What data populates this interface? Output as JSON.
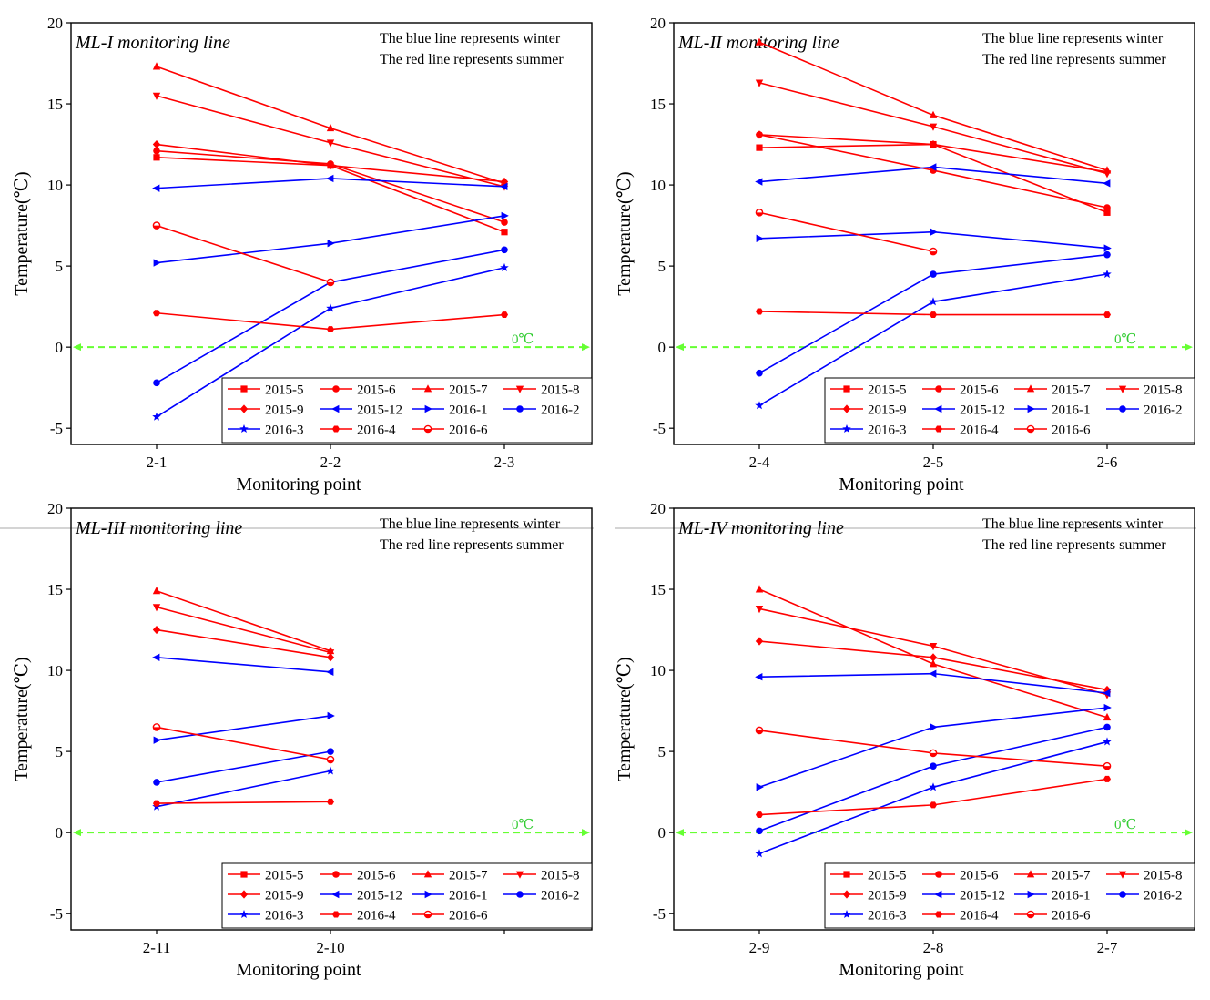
{
  "figure": {
    "x_axis_title": "Monitoring point",
    "y_axis_title": "Temperature(℃)",
    "zero_label": "0℃",
    "note_winter": "The blue line represents winter",
    "note_summer": "The red line represents summer"
  },
  "colors": {
    "summer": "#ff0000",
    "winter": "#0000ff",
    "zero_line": "#66ff33"
  },
  "legend": [
    {
      "name": "2015-5",
      "color": "#ff0000",
      "marker": "square"
    },
    {
      "name": "2015-6",
      "color": "#ff0000",
      "marker": "circle"
    },
    {
      "name": "2015-7",
      "color": "#ff0000",
      "marker": "triangle-up"
    },
    {
      "name": "2015-8",
      "color": "#ff0000",
      "marker": "triangle-down"
    },
    {
      "name": "2015-9",
      "color": "#ff0000",
      "marker": "diamond"
    },
    {
      "name": "2015-12",
      "color": "#0000ff",
      "marker": "triangle-left"
    },
    {
      "name": "2016-1",
      "color": "#0000ff",
      "marker": "triangle-right"
    },
    {
      "name": "2016-2",
      "color": "#0000ff",
      "marker": "circle"
    },
    {
      "name": "2016-3",
      "color": "#0000ff",
      "marker": "star"
    },
    {
      "name": "2016-4",
      "color": "#ff0000",
      "marker": "hexagon"
    },
    {
      "name": "2016-6",
      "color": "#ff0000",
      "marker": "half-circle"
    }
  ],
  "chart_data": [
    {
      "type": "line",
      "title": "ML-I monitoring line",
      "xlabel": "Monitoring point",
      "ylabel": "Temperature(℃)",
      "ylim": [
        -6,
        20
      ],
      "yticks": [
        -5,
        0,
        5,
        10,
        15,
        20
      ],
      "categories": [
        "2-1",
        "2-2",
        "2-3"
      ],
      "series": [
        {
          "name": "2015-5",
          "values": [
            11.7,
            11.2,
            7.1
          ]
        },
        {
          "name": "2015-6",
          "values": [
            12.1,
            11.3,
            7.7
          ]
        },
        {
          "name": "2015-7",
          "values": [
            17.3,
            13.5,
            10.1
          ]
        },
        {
          "name": "2015-8",
          "values": [
            15.5,
            12.6,
            9.9
          ]
        },
        {
          "name": "2015-9",
          "values": [
            12.5,
            11.2,
            10.2
          ]
        },
        {
          "name": "2015-12",
          "values": [
            9.8,
            10.4,
            9.9
          ]
        },
        {
          "name": "2016-1",
          "values": [
            5.2,
            6.4,
            8.1
          ]
        },
        {
          "name": "2016-2",
          "values": [
            -2.2,
            4.0,
            6.0
          ]
        },
        {
          "name": "2016-3",
          "values": [
            -4.3,
            2.4,
            4.9
          ]
        },
        {
          "name": "2016-4",
          "values": [
            2.1,
            1.1,
            2.0
          ]
        },
        {
          "name": "2016-6",
          "values": [
            7.5,
            4.0,
            null
          ]
        }
      ]
    },
    {
      "type": "line",
      "title": "ML-II monitoring line",
      "xlabel": "Monitoring point",
      "ylabel": "Temperature(℃)",
      "ylim": [
        -6,
        20
      ],
      "yticks": [
        -5,
        0,
        5,
        10,
        15,
        20
      ],
      "categories": [
        "2-4",
        "2-5",
        "2-6"
      ],
      "series": [
        {
          "name": "2015-5",
          "values": [
            12.3,
            12.5,
            8.3
          ]
        },
        {
          "name": "2015-6",
          "values": [
            13.1,
            10.9,
            8.6
          ]
        },
        {
          "name": "2015-7",
          "values": [
            18.8,
            14.3,
            10.9
          ]
        },
        {
          "name": "2015-8",
          "values": [
            16.3,
            13.6,
            10.7
          ]
        },
        {
          "name": "2015-9",
          "values": [
            13.1,
            12.5,
            10.8
          ]
        },
        {
          "name": "2015-12",
          "values": [
            10.2,
            11.1,
            10.1
          ]
        },
        {
          "name": "2016-1",
          "values": [
            6.7,
            7.1,
            6.1
          ]
        },
        {
          "name": "2016-2",
          "values": [
            -1.6,
            4.5,
            5.7
          ]
        },
        {
          "name": "2016-3",
          "values": [
            -3.6,
            2.8,
            4.5
          ]
        },
        {
          "name": "2016-4",
          "values": [
            2.2,
            2.0,
            2.0
          ]
        },
        {
          "name": "2016-6",
          "values": [
            8.3,
            5.9,
            null
          ]
        }
      ]
    },
    {
      "type": "line",
      "title": "ML-III monitoring line",
      "xlabel": "Monitoring point",
      "ylabel": "Temperature(℃)",
      "ylim": [
        -6,
        20
      ],
      "yticks": [
        -5,
        0,
        5,
        10,
        15,
        20
      ],
      "categories": [
        "2-11",
        "2-10",
        ""
      ],
      "series": [
        {
          "name": "2015-7",
          "values": [
            14.9,
            11.2,
            null
          ]
        },
        {
          "name": "2015-8",
          "values": [
            13.9,
            11.1,
            null
          ]
        },
        {
          "name": "2015-9",
          "values": [
            12.5,
            10.8,
            null
          ]
        },
        {
          "name": "2015-12",
          "values": [
            10.8,
            9.9,
            null
          ]
        },
        {
          "name": "2016-1",
          "values": [
            5.7,
            7.2,
            null
          ]
        },
        {
          "name": "2016-2",
          "values": [
            3.1,
            5.0,
            null
          ]
        },
        {
          "name": "2016-3",
          "values": [
            1.6,
            3.8,
            null
          ]
        },
        {
          "name": "2016-4",
          "values": [
            1.8,
            1.9,
            null
          ]
        },
        {
          "name": "2016-6",
          "values": [
            6.5,
            4.5,
            null
          ]
        }
      ]
    },
    {
      "type": "line",
      "title": "ML-IV monitoring line",
      "xlabel": "Monitoring point",
      "ylabel": "Temperature(℃)",
      "ylim": [
        -6,
        20
      ],
      "yticks": [
        -5,
        0,
        5,
        10,
        15,
        20
      ],
      "categories": [
        "2-9",
        "2-8",
        "2-7"
      ],
      "series": [
        {
          "name": "2015-7",
          "values": [
            15.0,
            10.4,
            7.1
          ]
        },
        {
          "name": "2015-8",
          "values": [
            13.8,
            11.5,
            8.5
          ]
        },
        {
          "name": "2015-9",
          "values": [
            11.8,
            10.8,
            8.8
          ]
        },
        {
          "name": "2015-12",
          "values": [
            9.6,
            9.8,
            8.6
          ]
        },
        {
          "name": "2016-1",
          "values": [
            2.8,
            6.5,
            7.7
          ]
        },
        {
          "name": "2016-2",
          "values": [
            0.1,
            4.1,
            6.5
          ]
        },
        {
          "name": "2016-3",
          "values": [
            -1.3,
            2.8,
            5.6
          ]
        },
        {
          "name": "2016-4",
          "values": [
            1.1,
            1.7,
            3.3
          ]
        },
        {
          "name": "2016-6",
          "values": [
            6.3,
            4.9,
            4.1
          ]
        }
      ]
    }
  ]
}
